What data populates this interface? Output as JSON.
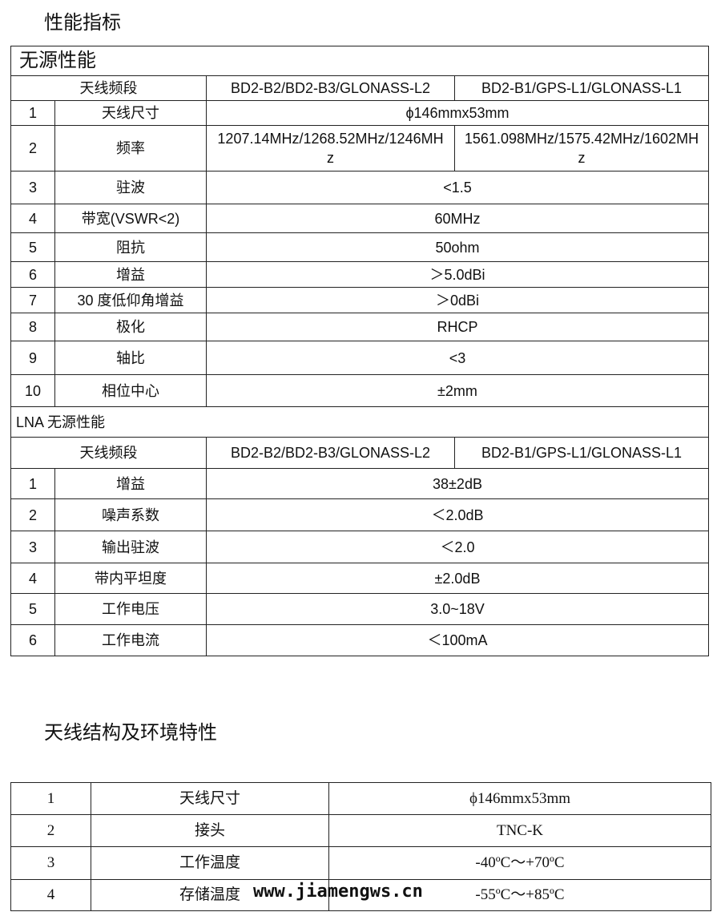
{
  "title": "性能指标",
  "passive": {
    "title": "无源性能",
    "band_label": "天线频段",
    "bands": [
      "BD2-B2/BD2-B3/GLONASS-L2",
      "BD2-B1/GPS-L1/GLONASS-L1"
    ],
    "rows": [
      {
        "n": "1",
        "name": "天线尺寸",
        "value": "ϕ146mmx53mm"
      },
      {
        "n": "2",
        "name": "频率",
        "v1": "1207.14MHz/1268.52MHz/1246MHz",
        "v2": "1561.098MHz/1575.42MHz/1602MHz"
      },
      {
        "n": "3",
        "name": "驻波",
        "value": "<1.5"
      },
      {
        "n": "4",
        "name": "带宽(VSWR<2)",
        "value": "60MHz"
      },
      {
        "n": "5",
        "name": "阻抗",
        "value": "50ohm"
      },
      {
        "n": "6",
        "name": "增益",
        "value": "＞5.0dBi"
      },
      {
        "n": "7",
        "name": "30 度低仰角增益",
        "value": "＞0dBi"
      },
      {
        "n": "8",
        "name": "极化",
        "value": "RHCP"
      },
      {
        "n": "9",
        "name": "轴比",
        "value": "<3"
      },
      {
        "n": "10",
        "name": "相位中心",
        "value": "±2mm"
      }
    ]
  },
  "lna": {
    "title": "LNA 无源性能",
    "band_label": "天线频段",
    "bands": [
      "BD2-B2/BD2-B3/GLONASS-L2",
      "BD2-B1/GPS-L1/GLONASS-L1"
    ],
    "rows": [
      {
        "n": "1",
        "name": "增益",
        "value": "38±2dB"
      },
      {
        "n": "2",
        "name": "噪声系数",
        "value": "＜2.0dB"
      },
      {
        "n": "3",
        "name": "输出驻波",
        "value": "＜2.0"
      },
      {
        "n": "4",
        "name": "带内平坦度",
        "value": "±2.0dB"
      },
      {
        "n": "5",
        "name": "工作电压",
        "value": "3.0~18V"
      },
      {
        "n": "6",
        "name": "工作电流",
        "value": "＜100mA"
      }
    ]
  },
  "structure": {
    "title": "天线结构及环境特性",
    "rows": [
      {
        "n": "1",
        "name": "天线尺寸",
        "value": "ϕ146mmx53mm"
      },
      {
        "n": "2",
        "name": "接头",
        "value": "TNC-K"
      },
      {
        "n": "3",
        "name": "工作温度",
        "value": "-40ºC～+70ºC"
      },
      {
        "n": "4",
        "name": "存储温度",
        "value": "-55ºC～+85ºC"
      }
    ]
  },
  "watermark": "www.jiamengws.cn"
}
